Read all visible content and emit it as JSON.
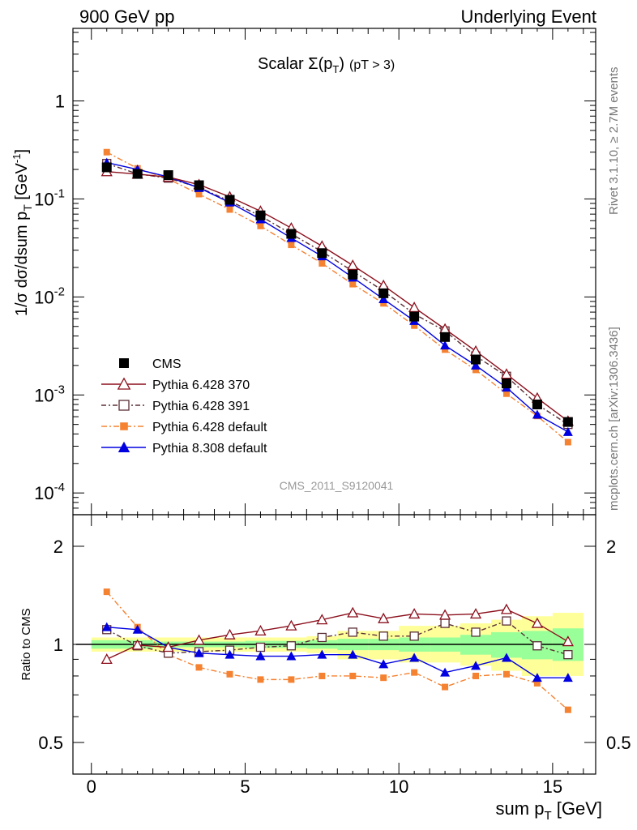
{
  "header": {
    "left": "900 GeV pp",
    "right": "Underlying Event"
  },
  "side_labels": {
    "rivet": "Rivet 3.1.10, ≥ 2.7M events",
    "mcplots": "mcplots.cern.ch [arXiv:1306.3436]"
  },
  "main_panel": {
    "title_prefix": "Scalar ",
    "title_sigma": "Σ(p",
    "title_sub": "T",
    "title_close": ")",
    "title_cut": "(pT >  3)",
    "ylabel": "1/σ dσ/dsum p",
    "ylabel_sub": "T",
    "ylabel_unit": " [GeV",
    "ylabel_unit_sup": "-1",
    "ylabel_unit_close": "]",
    "watermark": "CMS_2011_S9120041",
    "yticks": [
      {
        "base": "1",
        "exp": ""
      },
      {
        "base": "10",
        "exp": "-1"
      },
      {
        "base": "10",
        "exp": "-2"
      },
      {
        "base": "10",
        "exp": "-3"
      },
      {
        "base": "10",
        "exp": "-4"
      }
    ]
  },
  "ratio_panel": {
    "ylabel": "Ratio to CMS",
    "yticks": [
      "0.5",
      "1",
      "2"
    ],
    "xticks": [
      "0",
      "5",
      "10",
      "15"
    ],
    "xlabel": "sum p",
    "xlabel_sub": "T",
    "xlabel_unit": " [GeV]"
  },
  "colors": {
    "cms": "#000000",
    "p370": "#8b0f1c",
    "p391": "#5a2e36",
    "p6def": "#f58231",
    "p8def": "#0000e0",
    "band_yellow": "#ffff99",
    "band_green": "#99ff99"
  },
  "chart_data": {
    "type": "scatter",
    "x": [
      0.5,
      1.5,
      2.5,
      3.5,
      4.5,
      5.5,
      6.5,
      7.5,
      8.5,
      9.5,
      10.5,
      11.5,
      12.5,
      13.5,
      14.5,
      15.5
    ],
    "xlim": [
      -0.6,
      16.4
    ],
    "ylim_main": [
      6e-05,
      5.5
    ],
    "ylog_main": true,
    "ylim_ratio": [
      0.4,
      2.5
    ],
    "ylog_ratio": true,
    "series": [
      {
        "name": "CMS",
        "key": "cms",
        "marker": "filled-square",
        "values": [
          0.21,
          0.18,
          0.175,
          0.138,
          0.098,
          0.068,
          0.044,
          0.028,
          0.0169,
          0.0109,
          0.0063,
          0.0039,
          0.0023,
          0.00131,
          0.0008,
          0.00053
        ]
      },
      {
        "name": "Pythia 6.428 370",
        "key": "p370",
        "marker": "open-triangle",
        "values": [
          0.19,
          0.179,
          0.167,
          0.14,
          0.105,
          0.075,
          0.0505,
          0.033,
          0.021,
          0.0131,
          0.0078,
          0.0047,
          0.0028,
          0.00163,
          0.00093,
          0.00054
        ],
        "ratio": [
          0.9,
          0.995,
          0.98,
          1.03,
          1.07,
          1.1,
          1.14,
          1.19,
          1.25,
          1.2,
          1.24,
          1.23,
          1.24,
          1.28,
          1.16,
          1.02
        ]
      },
      {
        "name": "Pythia 6.428 391",
        "key": "p391",
        "marker": "open-square",
        "values": [
          0.23,
          0.18,
          0.163,
          0.131,
          0.095,
          0.067,
          0.044,
          0.029,
          0.0183,
          0.0115,
          0.0067,
          0.0045,
          0.0025,
          0.00155,
          0.0008,
          0.0005
        ],
        "ratio": [
          1.11,
          0.99,
          0.94,
          0.95,
          0.96,
          0.98,
          0.99,
          1.05,
          1.09,
          1.06,
          1.06,
          1.16,
          1.09,
          1.18,
          0.99,
          0.93
        ]
      },
      {
        "name": "Pythia 6.428 default",
        "key": "p6def",
        "marker": "filled-square-small",
        "values": [
          0.3,
          0.205,
          0.16,
          0.112,
          0.078,
          0.053,
          0.034,
          0.022,
          0.0135,
          0.0086,
          0.0051,
          0.0029,
          0.0018,
          0.00103,
          0.00061,
          0.00033
        ],
        "ratio": [
          1.45,
          1.13,
          0.93,
          0.85,
          0.81,
          0.78,
          0.78,
          0.8,
          0.8,
          0.79,
          0.82,
          0.74,
          0.8,
          0.81,
          0.76,
          0.63
        ]
      },
      {
        "name": "Pythia 8.308 default",
        "key": "p8def",
        "marker": "filled-triangle",
        "values": [
          0.235,
          0.2,
          0.168,
          0.13,
          0.092,
          0.062,
          0.04,
          0.026,
          0.0158,
          0.0095,
          0.0057,
          0.0032,
          0.002,
          0.00119,
          0.00063,
          0.00042
        ],
        "ratio": [
          1.13,
          1.11,
          0.98,
          0.94,
          0.93,
          0.92,
          0.92,
          0.93,
          0.93,
          0.87,
          0.91,
          0.82,
          0.86,
          0.91,
          0.79,
          0.79
        ]
      }
    ],
    "ratio_band_green": [
      [
        0.97,
        1.03
      ],
      [
        0.97,
        1.03
      ],
      [
        0.98,
        1.02
      ],
      [
        0.98,
        1.02
      ],
      [
        0.98,
        1.02
      ],
      [
        0.975,
        1.025
      ],
      [
        0.975,
        1.025
      ],
      [
        0.97,
        1.03
      ],
      [
        0.96,
        1.04
      ],
      [
        0.96,
        1.04
      ],
      [
        0.95,
        1.05
      ],
      [
        0.95,
        1.05
      ],
      [
        0.93,
        1.07
      ],
      [
        0.91,
        1.09
      ],
      [
        0.9,
        1.1
      ],
      [
        0.89,
        1.12
      ]
    ],
    "ratio_band_yellow": [
      [
        0.95,
        1.05
      ],
      [
        0.95,
        1.05
      ],
      [
        0.95,
        1.05
      ],
      [
        0.95,
        1.05
      ],
      [
        0.95,
        1.05
      ],
      [
        0.95,
        1.05
      ],
      [
        0.95,
        1.05
      ],
      [
        0.94,
        1.06
      ],
      [
        0.9,
        1.1
      ],
      [
        0.9,
        1.1
      ],
      [
        0.88,
        1.14
      ],
      [
        0.88,
        1.14
      ],
      [
        0.86,
        1.16
      ],
      [
        0.83,
        1.19
      ],
      [
        0.8,
        1.22
      ],
      [
        0.8,
        1.25
      ]
    ]
  }
}
